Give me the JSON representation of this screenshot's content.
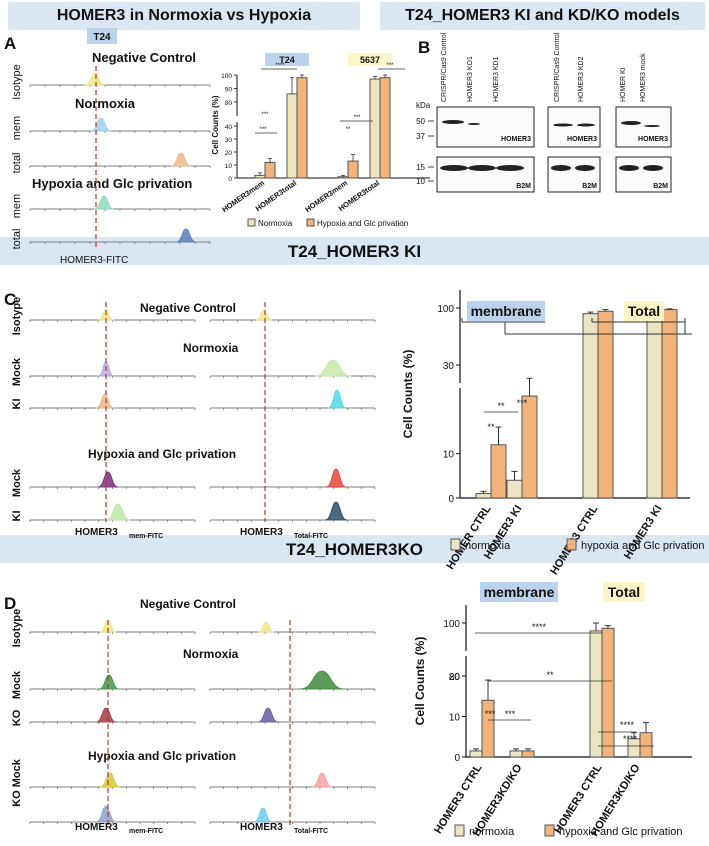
{
  "panel_titles": {
    "left_top": "HOMER3 in Normoxia vs Hypoxia",
    "right_top": "T24_HOMER3 KI and KD/KO models",
    "middle": "T24_HOMER3 KI",
    "bottom": "T24_HOMER3KO"
  },
  "panel_letters": {
    "a": "A",
    "b": "B",
    "c": "C",
    "d": "D"
  },
  "colors": {
    "band": "#dbe6f3",
    "normoxia": "#ece5c4",
    "hypoxia": "#f2b47a",
    "dashed_line": "#b03a2e",
    "highlight_blue": "#bcd3ee",
    "highlight_yellow": "#fbf6c8"
  },
  "panel_a": {
    "cell_line_tag": "T24",
    "flow": {
      "sections": [
        "Negative Control",
        "Normoxia",
        "Hypoxia and Glc privation"
      ],
      "row_labels": [
        "Isotype",
        "mem",
        "total",
        "mem",
        "total"
      ],
      "xlabel": "HOMER3-FITC",
      "peak_colors": [
        "#f1e58a",
        "#9cd0ee",
        "#f0b880",
        "#8fdcc0",
        "#5b7eb8"
      ]
    },
    "chart_data": {
      "type": "bar",
      "groups": [
        "T24",
        "5637"
      ],
      "categories": [
        "HOMER3mem",
        "HOMER3total"
      ],
      "ylabel": "Cell Counts (%)",
      "yticks": [
        "0",
        "10",
        "20",
        "30",
        "40",
        "80",
        "90",
        "100"
      ],
      "series": [
        {
          "name": "Normoxia",
          "values": [
            [
              2,
              86
            ],
            [
              1,
              97
            ]
          ],
          "errors": [
            [
              2,
              12
            ],
            [
              1,
              2
            ]
          ]
        },
        {
          "name": "Hypoxia and Glc privation",
          "values": [
            [
              12,
              98
            ],
            [
              13,
              98
            ]
          ],
          "errors": [
            [
              3,
              2
            ],
            [
              5,
              2
            ]
          ]
        }
      ],
      "annotations": [
        "***",
        "***",
        "****",
        "**",
        "***",
        "***"
      ]
    }
  },
  "panel_b": {
    "kda_label": "kDa",
    "markers": [
      "50",
      "37",
      "15",
      "10"
    ],
    "blots": [
      {
        "lanes": [
          "CRISPR/Cas9 Control",
          "HOMER3 KO1",
          "HOMER3 KD1"
        ],
        "band_label": "HOMER3",
        "loading_label": "B2M"
      },
      {
        "lanes": [
          "CRISPR/Cas9 Control",
          "HOMER3 KD2"
        ],
        "band_label": "HOMER3",
        "loading_label": "B2M"
      },
      {
        "lanes": [
          "HOMER KI",
          "HOMER3 mock"
        ],
        "band_label": "HOMER3",
        "loading_label": "B2M"
      }
    ]
  },
  "panel_c": {
    "flow": {
      "sections": [
        "Negative Control",
        "Normoxia",
        "Hypoxia and Glc privation"
      ],
      "row_labels": [
        "Isotype",
        "Mock",
        "KI",
        "Mock",
        "KI"
      ],
      "xlabel_mem": "HOMER3",
      "xlabel_mem_sub": "mem-FITC",
      "xlabel_total": "HOMER3",
      "xlabel_total_sub": "Total-FITC"
    },
    "chart_data": {
      "type": "bar",
      "categories": [
        "HOMER CTRL",
        "HOMER3 KI",
        "HOMER3 CTRL",
        "HOMER3 KI"
      ],
      "group_labels": [
        "membrane",
        "Total"
      ],
      "ylabel": "Cell Counts (%)",
      "yticks": [
        "0",
        "10",
        "30",
        "100"
      ],
      "series": [
        {
          "name": "normoxia",
          "values": [
            1,
            4,
            93,
            98
          ],
          "errors": [
            0.5,
            2,
            2,
            1
          ]
        },
        {
          "name": "hypoxia and Glc privation",
          "values": [
            12,
            23,
            96,
            98
          ],
          "errors": [
            4,
            4,
            2,
            1
          ]
        }
      ],
      "annotations": [
        "**",
        "***",
        "**"
      ]
    }
  },
  "panel_d": {
    "flow": {
      "sections": [
        "Negative Control",
        "Normoxia",
        "Hypoxia and Glc privation"
      ],
      "row_labels": [
        "Isotype",
        "Mock",
        "KO",
        "KO Mock",
        ""
      ],
      "xlabel_mem": "HOMER3",
      "xlabel_mem_sub": "mem-FITC",
      "xlabel_total": "HOMER3",
      "xlabel_total_sub": "Total-FITC"
    },
    "chart_data": {
      "type": "bar",
      "categories": [
        "HOMER3 CTRL",
        "HOMER3KD/KO",
        "HOMER3 CTRL",
        "HOMER3KD/KO"
      ],
      "group_labels": [
        "membrane",
        "Total"
      ],
      "ylabel": "Cell Counts (%)",
      "yticks": [
        "0",
        "10",
        "20",
        "80",
        "100"
      ],
      "series": [
        {
          "name": "normoxia",
          "values": [
            1.5,
            1.5,
            97,
            4.5
          ],
          "errors": [
            0.5,
            0.5,
            3,
            1.5
          ]
        },
        {
          "name": "hypoxia and Glc privation",
          "values": [
            14,
            1.5,
            98,
            6
          ],
          "errors": [
            5,
            0.5,
            1,
            2.5
          ]
        }
      ],
      "annotations": [
        "****",
        "**",
        "***",
        "***",
        "****",
        "****"
      ]
    }
  }
}
